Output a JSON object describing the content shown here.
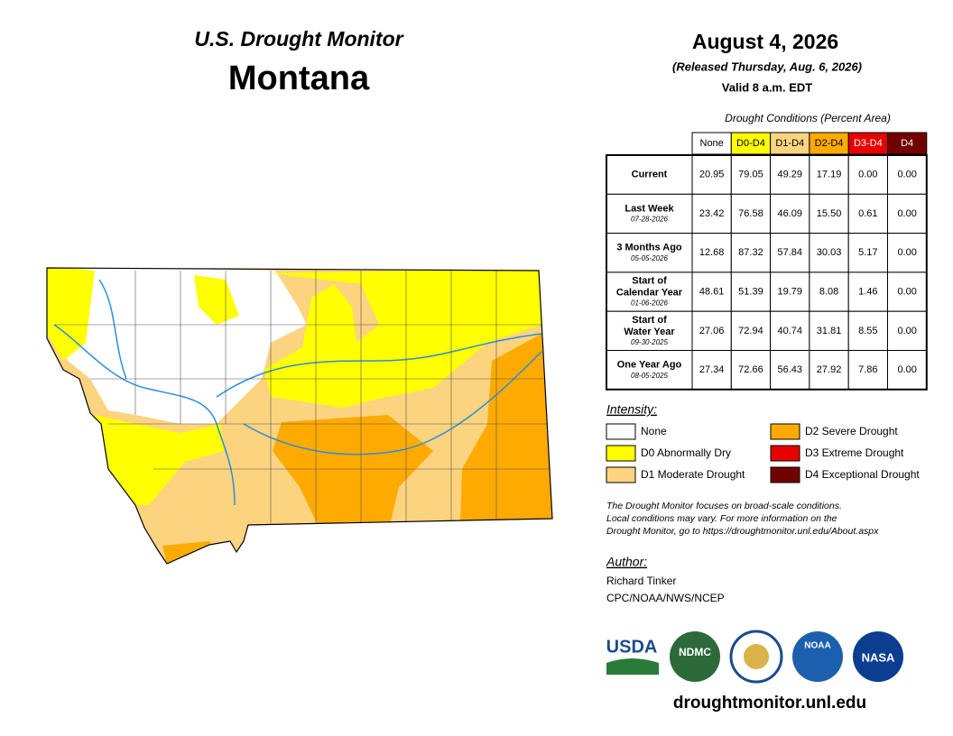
{
  "header": {
    "program": "U.S. Drought Monitor",
    "state": "Montana",
    "date": "August 4, 2026",
    "released": "(Released Thursday, Aug. 6, 2026)",
    "valid": "Valid 8 a.m. EDT"
  },
  "table": {
    "caption": "Drought Conditions (Percent Area)",
    "columns": [
      {
        "label": "None",
        "color": "#ffffff",
        "text": "#000000"
      },
      {
        "label": "D0-D4",
        "color": "#ffff00",
        "text": "#000000"
      },
      {
        "label": "D1-D4",
        "color": "#fcd37f",
        "text": "#000000"
      },
      {
        "label": "D2-D4",
        "color": "#ffaa00",
        "text": "#000000"
      },
      {
        "label": "D3-D4",
        "color": "#e60000",
        "text": "#ffffff"
      },
      {
        "label": "D4",
        "color": "#730000",
        "text": "#ffffff"
      }
    ],
    "rows": [
      {
        "label": [
          "Current"
        ],
        "values": [
          "20.95",
          "79.05",
          "49.29",
          "17.19",
          "0.00",
          "0.00"
        ]
      },
      {
        "label": [
          "Last Week"
        ],
        "date": "07-28-2026",
        "values": [
          "23.42",
          "76.58",
          "46.09",
          "15.50",
          "0.61",
          "0.00"
        ]
      },
      {
        "label": [
          "3 Months Ago"
        ],
        "date": "05-05-2026",
        "values": [
          "12.68",
          "87.32",
          "57.84",
          "30.03",
          "5.17",
          "0.00"
        ]
      },
      {
        "label": [
          "Start of",
          "Calendar Year"
        ],
        "date": "01-06-2026",
        "values": [
          "48.61",
          "51.39",
          "19.79",
          "8.08",
          "1.46",
          "0.00"
        ]
      },
      {
        "label": [
          "Start of",
          "Water Year"
        ],
        "date": "09-30-2025",
        "values": [
          "27.06",
          "72.94",
          "40.74",
          "31.81",
          "8.55",
          "0.00"
        ]
      },
      {
        "label": [
          "One Year Ago"
        ],
        "date": "08-05-2025",
        "values": [
          "27.34",
          "72.66",
          "56.43",
          "27.92",
          "7.86",
          "0.00"
        ]
      }
    ]
  },
  "legend": {
    "title": "Intensity:",
    "items": [
      {
        "label": "None",
        "color": "#ffffff"
      },
      {
        "label": "D0 Abnormally Dry",
        "color": "#ffff00"
      },
      {
        "label": "D1 Moderate Drought",
        "color": "#fcd37f"
      },
      {
        "label": "D2 Severe Drought",
        "color": "#ffaa00"
      },
      {
        "label": "D3 Extreme Drought",
        "color": "#e60000"
      },
      {
        "label": "D4 Exceptional Drought",
        "color": "#730000"
      }
    ]
  },
  "note": [
    "The Drought Monitor focuses on broad-scale conditions.",
    "Local conditions may vary. For more information on the",
    "Drought Monitor, go to https://droughtmonitor.unl.edu/About.aspx"
  ],
  "author": {
    "title": "Author:",
    "name": "Richard Tinker",
    "org": "CPC/NOAA/NWS/NCEP"
  },
  "logos": {
    "usda": "USDA",
    "ndmc": "NDMC",
    "noaa": "NOAA",
    "nasa": "NASA"
  },
  "url": "droughtmonitor.unl.edu"
}
